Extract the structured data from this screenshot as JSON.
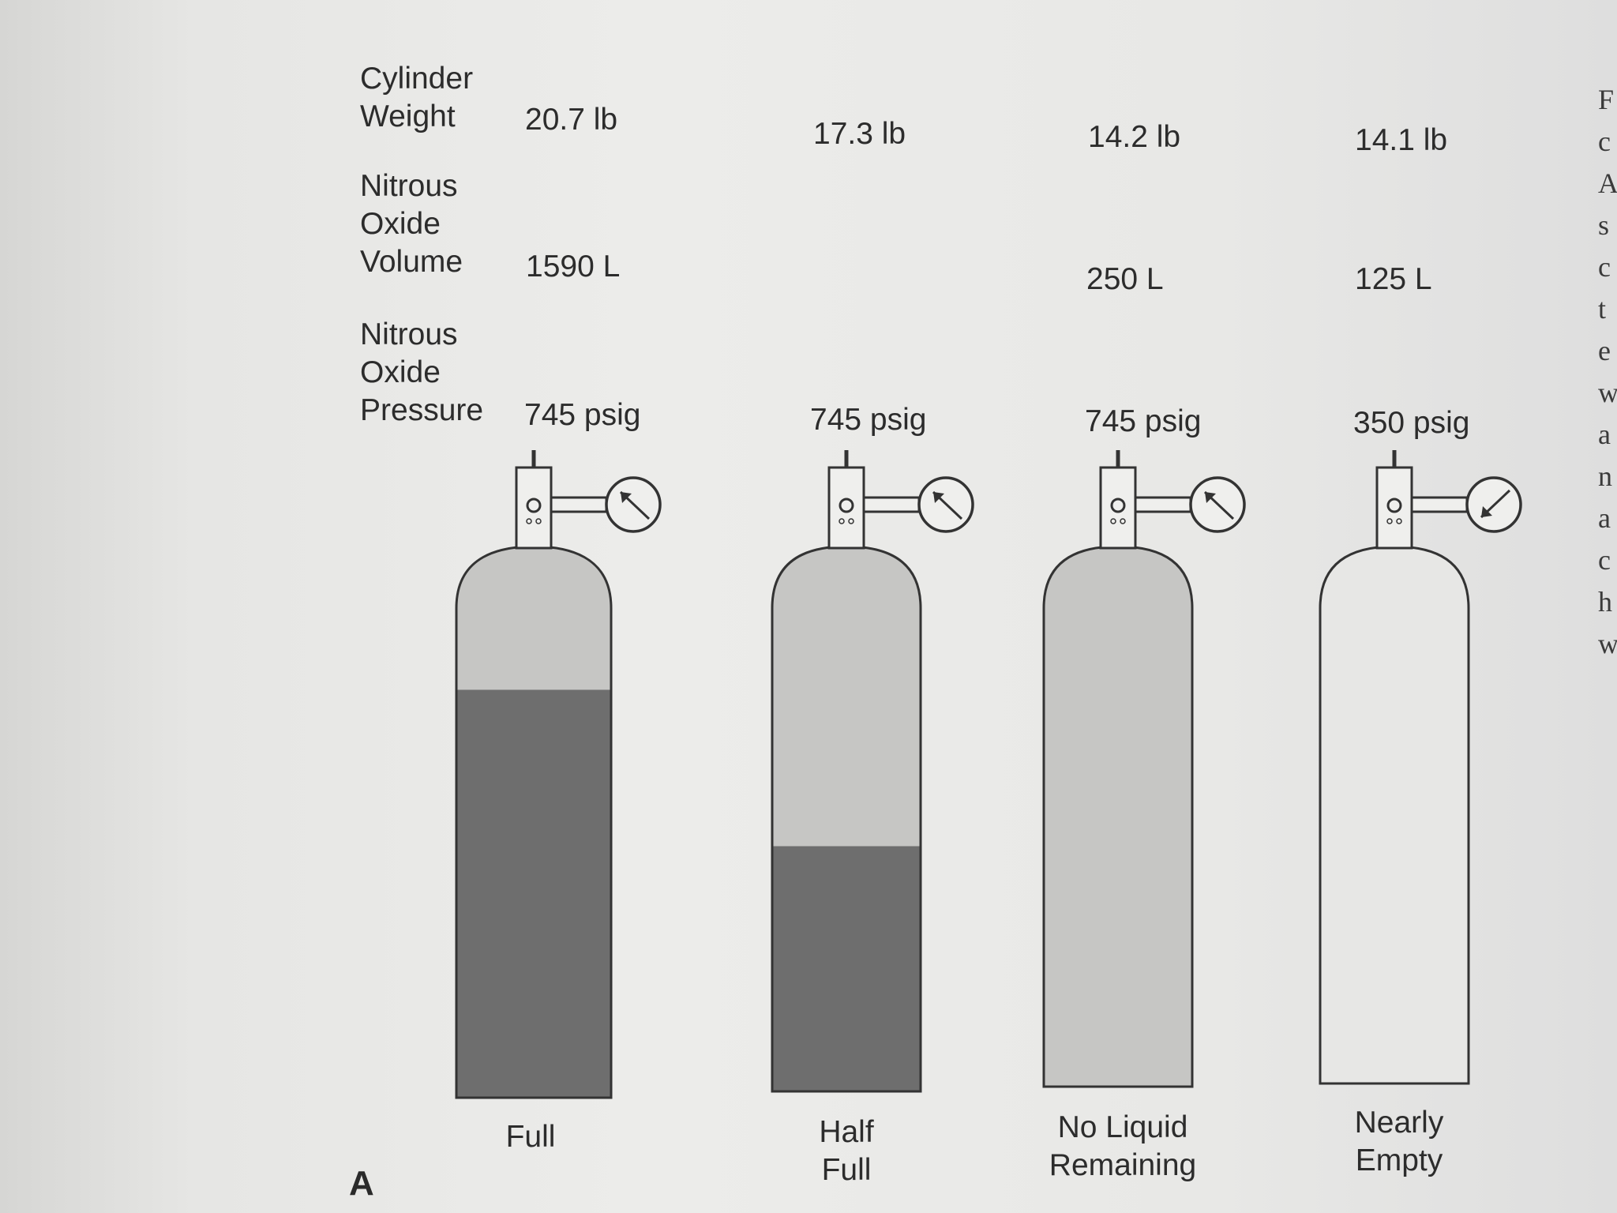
{
  "row_labels": {
    "weight": "Cylinder\nWeight",
    "volume": "Nitrous\nOxide\nVolume",
    "pressure": "Nitrous\nOxide\nPressure"
  },
  "cylinders": [
    {
      "weight": "20.7 lb",
      "volume": "1590 L",
      "pressure": "745 psig",
      "caption": "Full",
      "liquid_fraction": 0.74,
      "gauge": "high"
    },
    {
      "weight": "17.3 lb",
      "volume": "",
      "pressure": "745 psig",
      "caption": "Half\nFull",
      "liquid_fraction": 0.45,
      "gauge": "high"
    },
    {
      "weight": "14.2 lb",
      "volume": "250 L",
      "pressure": "745 psig",
      "caption": "No Liquid\nRemaining",
      "liquid_fraction": 0,
      "gauge": "high"
    },
    {
      "weight": "14.1 lb",
      "volume": "125 L",
      "pressure": "350 psig",
      "caption": "Nearly\nEmpty",
      "liquid_fraction": 0,
      "gauge": "low"
    }
  ],
  "figure_letter": "A",
  "edge_text": "F\nc\nA\ns\nc\nt\ne\nw\na\nn\na\nc\nh\nw",
  "colors": {
    "liquid": "#6e6e6e",
    "gas": "#c6c6c4",
    "outline": "#333333",
    "empty": "#e7e7e5"
  }
}
